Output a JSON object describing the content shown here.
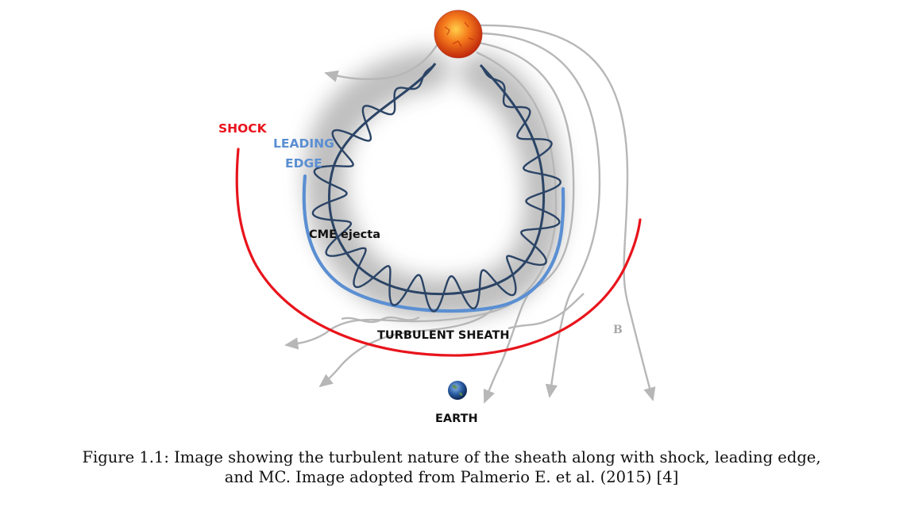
{
  "figure": {
    "labels": {
      "shock": "SHOCK",
      "leading_1": "LEADING",
      "leading_2": "EDGE",
      "cme": "CME ejecta",
      "sheath": "TURBULENT SHEATH",
      "b": "B",
      "earth": "EARTH"
    },
    "colors": {
      "shock": "#e8141c",
      "leading_edge": "#5b8fd2",
      "flux_rope": "#2b4466",
      "field_lines": "#b7b7b7",
      "sheath_cloud": "#8a8a8a"
    },
    "icons": [
      "sun-icon",
      "earth-icon"
    ]
  },
  "caption": {
    "line1": "Figure 1.1: Image showing the turbulent nature of the sheath along with shock, leading edge,",
    "line2": "and MC. Image adopted from Palmerio E. et al. (2015) [4]"
  }
}
